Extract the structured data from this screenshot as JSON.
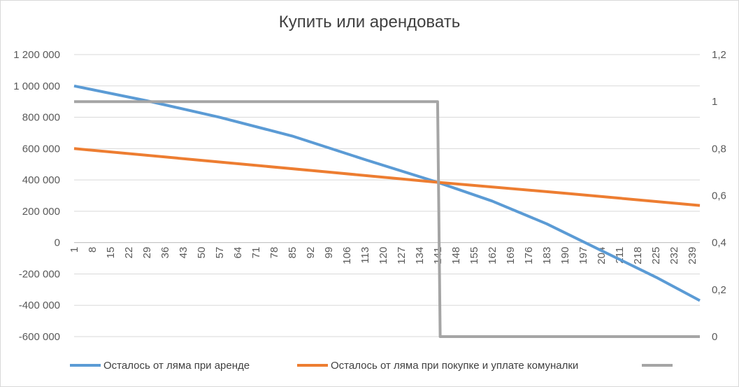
{
  "chart_data": {
    "type": "line",
    "title": "Купить или арендовать",
    "x_tick_labels": [
      "1",
      "8",
      "15",
      "22",
      "29",
      "36",
      "43",
      "50",
      "57",
      "64",
      "71",
      "78",
      "85",
      "92",
      "99",
      "106",
      "113",
      "120",
      "127",
      "134",
      "141",
      "148",
      "155",
      "162",
      "169",
      "176",
      "183",
      "190",
      "197",
      "204",
      "211",
      "218",
      "225",
      "232",
      "239"
    ],
    "x_range": [
      1,
      242
    ],
    "y_left": {
      "min": -600000,
      "max": 1200000,
      "tick_labels": [
        "-600 000",
        "-400 000",
        "-200 000",
        "0",
        "200 000",
        "400 000",
        "600 000",
        "800 000",
        "1 000 000",
        "1 200 000"
      ],
      "tick_values": [
        -600000,
        -400000,
        -200000,
        0,
        200000,
        400000,
        600000,
        800000,
        1000000,
        1200000
      ]
    },
    "y_right": {
      "min": 0,
      "max": 1.2,
      "tick_labels": [
        "0",
        "0,2",
        "0,4",
        "0,6",
        "0,8",
        "1",
        "1,2"
      ],
      "tick_values": [
        0,
        0.2,
        0.4,
        0.6,
        0.8,
        1,
        1.2
      ]
    },
    "grid": "horizontal",
    "legend_position": "bottom",
    "series": [
      {
        "name": "Осталось от ляма при аренде",
        "axis": "left",
        "color": "#5b9bd5",
        "points": [
          [
            1,
            1000000
          ],
          [
            29,
            905000
          ],
          [
            57,
            800000
          ],
          [
            85,
            680000
          ],
          [
            113,
            530000
          ],
          [
            141,
            385000
          ],
          [
            162,
            265000
          ],
          [
            183,
            120000
          ],
          [
            204,
            -50000
          ],
          [
            225,
            -220000
          ],
          [
            242,
            -370000
          ]
        ]
      },
      {
        "name": "Осталось от ляма при покупке и уплате комуналки",
        "axis": "left",
        "color": "#ed7d31",
        "points": [
          [
            1,
            600000
          ],
          [
            50,
            525000
          ],
          [
            99,
            450000
          ],
          [
            141,
            385000
          ],
          [
            190,
            315000
          ],
          [
            242,
            237000
          ]
        ]
      },
      {
        "name": "",
        "axis": "right",
        "color": "#a5a5a5",
        "points": [
          [
            1,
            1
          ],
          [
            141,
            1
          ],
          [
            142,
            0
          ],
          [
            242,
            0
          ]
        ]
      }
    ]
  }
}
